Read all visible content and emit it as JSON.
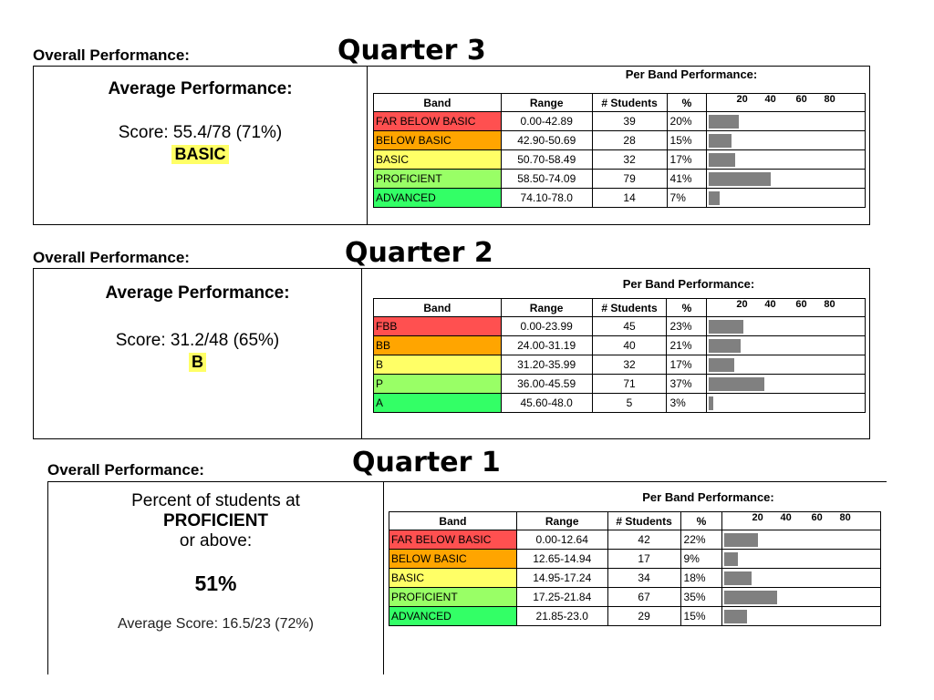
{
  "colors": {
    "fbb": "#ff5050",
    "bb": "#ffa500",
    "basic": "#ffff66",
    "proficient": "#99ff66",
    "advanced": "#33ff66",
    "bar": "#808080"
  },
  "table_headers": {
    "per_band": "Per Band Performance:",
    "band": "Band",
    "range": "Range",
    "students": "# Students",
    "percent": "%",
    "scale_ticks": [
      "20",
      "40",
      "60",
      "80"
    ]
  },
  "sections": {
    "q3": {
      "overall_label": "Overall Performance:",
      "quarter_title": "Quarter 3",
      "avg_title": "Average Performance:",
      "score": "Score: 55.4/78 (71%)",
      "level": "BASIC",
      "rows": [
        {
          "band": "FAR BELOW BASIC",
          "range": "0.00-42.89",
          "students": "39",
          "percent": "20%",
          "value": 20,
          "color": "#ff5050"
        },
        {
          "band": "BELOW BASIC",
          "range": "42.90-50.69",
          "students": "28",
          "percent": "15%",
          "value": 15,
          "color": "#ffa500"
        },
        {
          "band": "BASIC",
          "range": "50.70-58.49",
          "students": "32",
          "percent": "17%",
          "value": 17,
          "color": "#ffff66"
        },
        {
          "band": "PROFICIENT",
          "range": "58.50-74.09",
          "students": "79",
          "percent": "41%",
          "value": 41,
          "color": "#99ff66"
        },
        {
          "band": "ADVANCED",
          "range": "74.10-78.0",
          "students": "14",
          "percent": "7%",
          "value": 7,
          "color": "#33ff66"
        }
      ]
    },
    "q2": {
      "overall_label": "Overall Performance:",
      "quarter_title": "Quarter 2",
      "avg_title": "Average Performance:",
      "score": "Score: 31.2/48 (65%)",
      "level": "B",
      "rows": [
        {
          "band": "FBB",
          "range": "0.00-23.99",
          "students": "45",
          "percent": "23%",
          "value": 23,
          "color": "#ff5050"
        },
        {
          "band": "BB",
          "range": "24.00-31.19",
          "students": "40",
          "percent": "21%",
          "value": 21,
          "color": "#ffa500"
        },
        {
          "band": "B",
          "range": "31.20-35.99",
          "students": "32",
          "percent": "17%",
          "value": 17,
          "color": "#ffff66"
        },
        {
          "band": "P",
          "range": "36.00-45.59",
          "students": "71",
          "percent": "37%",
          "value": 37,
          "color": "#99ff66"
        },
        {
          "band": "A",
          "range": "45.60-48.0",
          "students": "5",
          "percent": "3%",
          "value": 3,
          "color": "#33ff66"
        }
      ]
    },
    "q1": {
      "overall_label": "Overall Performance:",
      "quarter_title": "Quarter 1",
      "pct_line1": "Percent of students at",
      "pct_line2": "PROFICIENT",
      "pct_line3": "or above:",
      "pct_value": "51%",
      "avg_score": "Average Score: 16.5/23 (72%)",
      "rows": [
        {
          "band": "FAR BELOW BASIC",
          "range": "0.00-12.64",
          "students": "42",
          "percent": "22%",
          "value": 22,
          "color": "#ff5050"
        },
        {
          "band": "BELOW BASIC",
          "range": "12.65-14.94",
          "students": "17",
          "percent": "9%",
          "value": 9,
          "color": "#ffa500"
        },
        {
          "band": "BASIC",
          "range": "14.95-17.24",
          "students": "34",
          "percent": "18%",
          "value": 18,
          "color": "#ffff66"
        },
        {
          "band": "PROFICIENT",
          "range": "17.25-21.84",
          "students": "67",
          "percent": "35%",
          "value": 35,
          "color": "#99ff66"
        },
        {
          "band": "ADVANCED",
          "range": "21.85-23.0",
          "students": "29",
          "percent": "15%",
          "value": 15,
          "color": "#33ff66"
        }
      ]
    }
  }
}
